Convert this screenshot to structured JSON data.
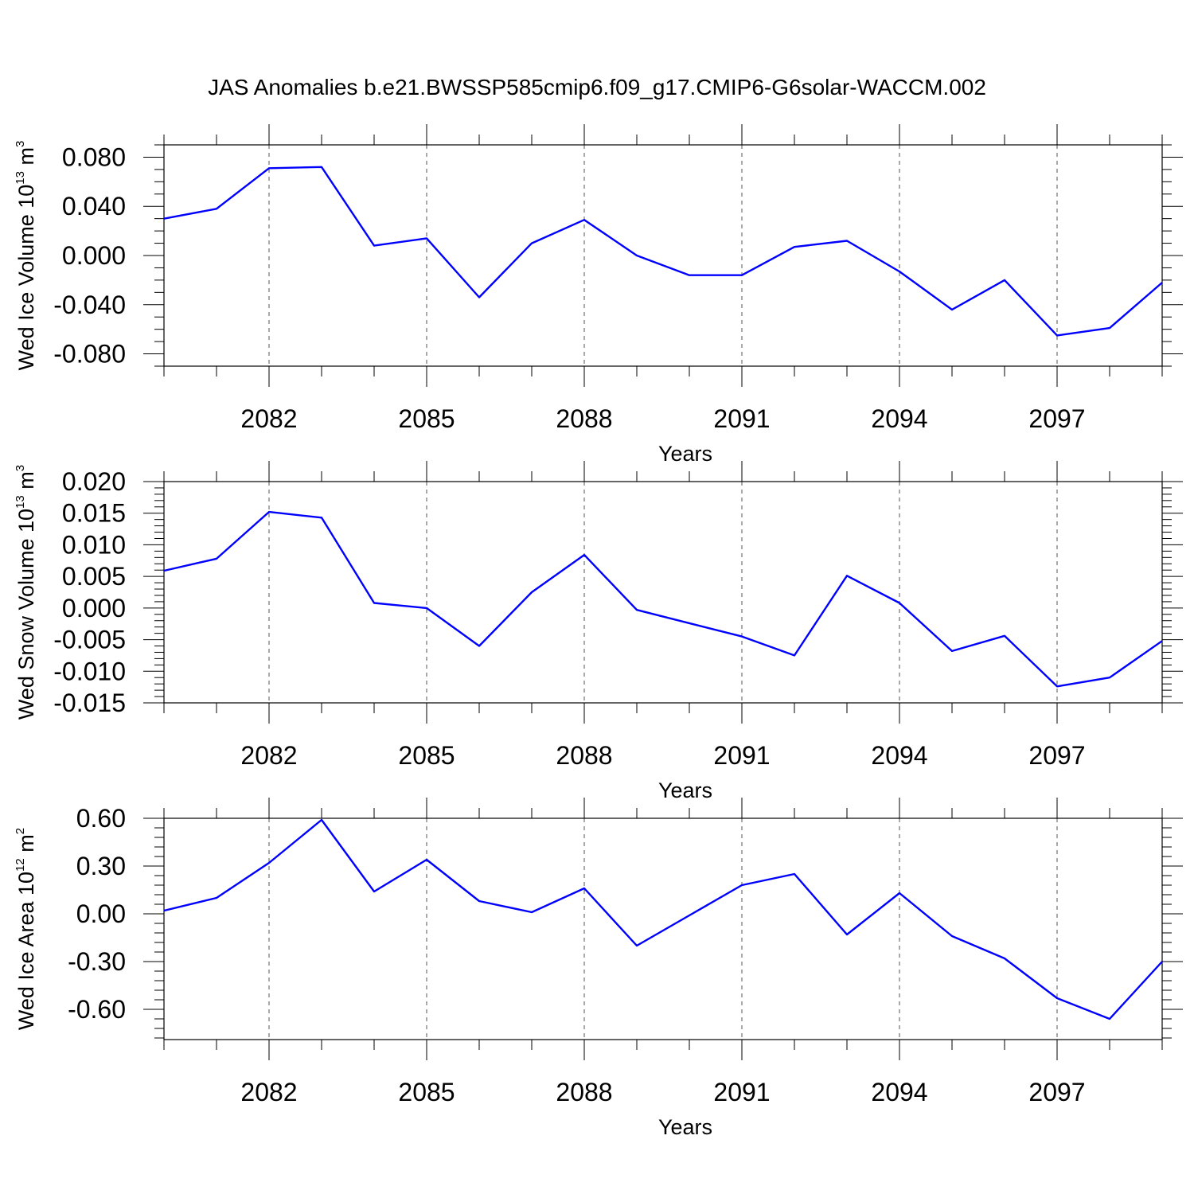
{
  "title": "JAS Anomalies b.e21.BWSSP585cmip6.f09_g17.CMIP6-G6solar-WACCM.002",
  "chart_data": [
    {
      "type": "line",
      "ylabel_prefix": "Wed Ice Volume 10",
      "ylabel_exp": "13",
      "ylabel_unit": " m",
      "ylabel_unit_exp": "3",
      "xlabel": "Years",
      "xlim": [
        2080,
        2099
      ],
      "ylim": [
        -0.09,
        0.09
      ],
      "yticks": [
        -0.08,
        -0.04,
        0.0,
        0.04,
        0.08
      ],
      "ytick_labels": [
        "-0.080",
        "-0.040",
        "0.000",
        "0.040",
        "0.080"
      ],
      "yminor_step": 0.01,
      "xticks": [
        2082,
        2085,
        2088,
        2091,
        2094,
        2097
      ],
      "xtick_labels": [
        "2082",
        "2085",
        "2088",
        "2091",
        "2094",
        "2097"
      ],
      "grid": "dashed vertical at major x ticks",
      "color": "#0000ff",
      "x": [
        2080,
        2081,
        2082,
        2083,
        2084,
        2085,
        2086,
        2087,
        2088,
        2089,
        2090,
        2091,
        2092,
        2093,
        2094,
        2095,
        2096,
        2097,
        2098,
        2099
      ],
      "values": [
        0.03,
        0.038,
        0.071,
        0.072,
        0.008,
        0.014,
        -0.034,
        0.01,
        0.029,
        0.0,
        -0.016,
        -0.016,
        0.007,
        0.012,
        -0.013,
        -0.044,
        -0.02,
        -0.065,
        -0.059,
        -0.022
      ]
    },
    {
      "type": "line",
      "ylabel_prefix": "Wed Snow Volume 10",
      "ylabel_exp": "13",
      "ylabel_unit": " m",
      "ylabel_unit_exp": "3",
      "xlabel": "Years",
      "xlim": [
        2080,
        2099
      ],
      "ylim": [
        -0.015,
        0.02
      ],
      "yticks": [
        -0.015,
        -0.01,
        -0.005,
        0.0,
        0.005,
        0.01,
        0.015,
        0.02
      ],
      "ytick_labels": [
        "-0.015",
        "-0.010",
        "-0.005",
        "0.000",
        "0.005",
        "0.010",
        "0.015",
        "0.020"
      ],
      "yminor_step": 0.001,
      "xticks": [
        2082,
        2085,
        2088,
        2091,
        2094,
        2097
      ],
      "xtick_labels": [
        "2082",
        "2085",
        "2088",
        "2091",
        "2094",
        "2097"
      ],
      "grid": "dashed vertical at major x ticks",
      "color": "#0000ff",
      "x": [
        2080,
        2081,
        2082,
        2083,
        2084,
        2085,
        2086,
        2087,
        2088,
        2089,
        2090,
        2091,
        2092,
        2093,
        2094,
        2095,
        2096,
        2097,
        2098,
        2099
      ],
      "values": [
        0.0059,
        0.0078,
        0.0152,
        0.0143,
        0.0008,
        0.0,
        -0.006,
        0.0025,
        0.0084,
        -0.0003,
        -0.0024,
        -0.0045,
        -0.0075,
        0.0051,
        0.0008,
        -0.0068,
        -0.0044,
        -0.0124,
        -0.011,
        -0.0052
      ]
    },
    {
      "type": "line",
      "ylabel_prefix": "Wed Ice Area 10",
      "ylabel_exp": "12",
      "ylabel_unit": " m",
      "ylabel_unit_exp": "2",
      "xlabel": "Years",
      "xlim": [
        2080,
        2099
      ],
      "ylim": [
        -0.79,
        0.6
      ],
      "yticks": [
        -0.6,
        -0.3,
        0.0,
        0.3,
        0.6
      ],
      "ytick_labels": [
        "-0.60",
        "-0.30",
        "0.00",
        "0.30",
        "0.60"
      ],
      "yminor_step": 0.06,
      "xticks": [
        2082,
        2085,
        2088,
        2091,
        2094,
        2097
      ],
      "xtick_labels": [
        "2082",
        "2085",
        "2088",
        "2091",
        "2094",
        "2097"
      ],
      "grid": "dashed vertical at major x ticks",
      "color": "#0000ff",
      "x": [
        2080,
        2081,
        2082,
        2083,
        2084,
        2085,
        2086,
        2087,
        2088,
        2089,
        2090,
        2091,
        2092,
        2093,
        2094,
        2095,
        2096,
        2097,
        2098,
        2099
      ],
      "values": [
        0.02,
        0.1,
        0.32,
        0.59,
        0.14,
        0.34,
        0.08,
        0.01,
        0.16,
        -0.2,
        -0.01,
        0.18,
        0.25,
        -0.13,
        0.13,
        -0.14,
        -0.28,
        -0.53,
        -0.66,
        -0.3
      ]
    }
  ]
}
